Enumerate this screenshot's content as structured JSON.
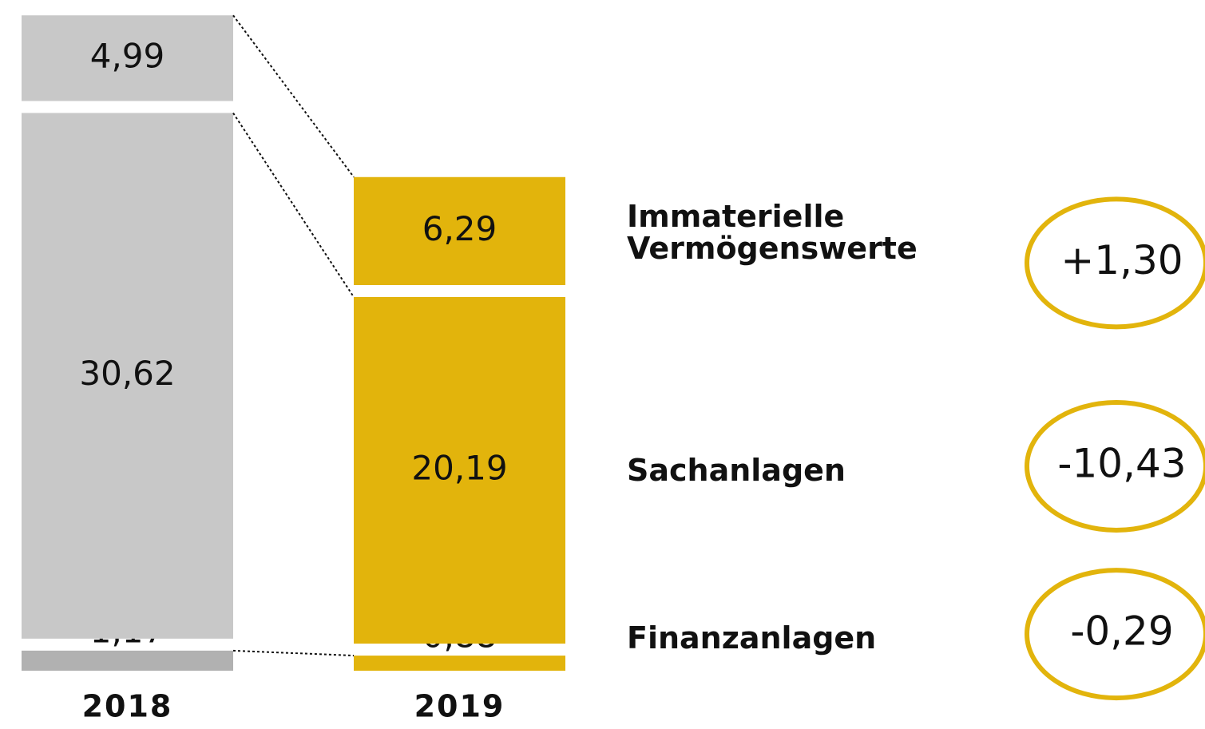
{
  "chart_data": {
    "type": "bar",
    "stacked": true,
    "categories": [
      "2018",
      "2019"
    ],
    "series": [
      {
        "name": "Finanzanlagen",
        "colors": [
          "#b1b1b1",
          "#e2b40c"
        ],
        "values": [
          1.17,
          0.88
        ],
        "value_labels": [
          "1,17",
          "0,88"
        ],
        "change": -0.29,
        "change_label": "-0,29"
      },
      {
        "name": "Sachanlagen",
        "colors": [
          "#c8c8c8",
          "#e2b40c"
        ],
        "values": [
          30.62,
          20.19
        ],
        "value_labels": [
          "30,62",
          "20,19"
        ],
        "change": -10.43,
        "change_label": "-10,43"
      },
      {
        "name": "Immaterielle Vermögenswerte",
        "colors": [
          "#c8c8c8",
          "#e2b40c"
        ],
        "values": [
          4.99,
          6.29
        ],
        "value_labels": [
          "4,99",
          "6,29"
        ],
        "change": 1.3,
        "change_label": "+1,30"
      }
    ],
    "change_color": "#e2b40c"
  }
}
